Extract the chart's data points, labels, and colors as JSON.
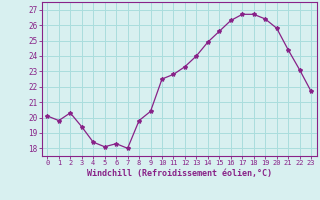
{
  "x": [
    0,
    1,
    2,
    3,
    4,
    5,
    6,
    7,
    8,
    9,
    10,
    11,
    12,
    13,
    14,
    15,
    16,
    17,
    18,
    19,
    20,
    21,
    22,
    23
  ],
  "y": [
    20.1,
    19.8,
    20.3,
    19.4,
    18.4,
    18.1,
    18.3,
    18.0,
    19.8,
    20.4,
    22.5,
    22.8,
    23.3,
    24.0,
    24.9,
    25.6,
    26.3,
    26.7,
    26.7,
    26.4,
    25.8,
    24.4,
    23.1,
    21.7
  ],
  "line_color": "#882288",
  "marker": "*",
  "marker_size": 3,
  "bg_color": "#d8f0f0",
  "grid_color": "#aadddd",
  "xlabel": "Windchill (Refroidissement éolien,°C)",
  "xlabel_color": "#882288",
  "tick_color": "#882288",
  "ylim": [
    17.5,
    27.5
  ],
  "yticks": [
    18,
    19,
    20,
    21,
    22,
    23,
    24,
    25,
    26,
    27
  ],
  "xticks": [
    0,
    1,
    2,
    3,
    4,
    5,
    6,
    7,
    8,
    9,
    10,
    11,
    12,
    13,
    14,
    15,
    16,
    17,
    18,
    19,
    20,
    21,
    22,
    23
  ]
}
